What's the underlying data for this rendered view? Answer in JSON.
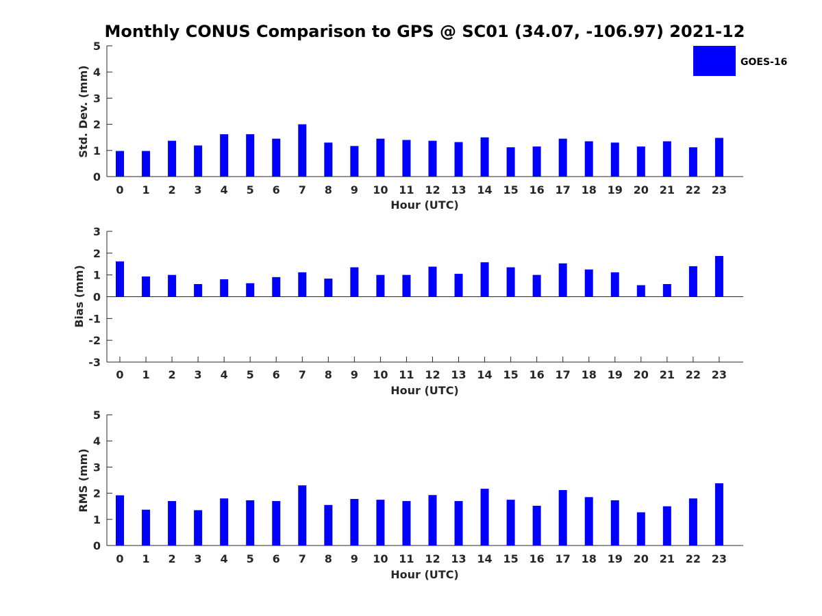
{
  "chart_data": [
    {
      "type": "bar",
      "title": "Monthly CONUS Comparison to GPS @ SC01 (34.07, -106.97) 2021-12",
      "xlabel": "Hour (UTC)",
      "ylabel": "Std. Dev. (mm)",
      "ylim": [
        0,
        5
      ],
      "yticks": [
        "0",
        "1",
        "2",
        "3",
        "4",
        "5"
      ],
      "categories": [
        "0",
        "1",
        "2",
        "3",
        "4",
        "5",
        "6",
        "7",
        "8",
        "9",
        "10",
        "11",
        "12",
        "13",
        "14",
        "15",
        "16",
        "17",
        "18",
        "19",
        "20",
        "21",
        "22",
        "23"
      ],
      "series": [
        {
          "name": "GOES-16",
          "color": "#0000ff",
          "values": [
            0.98,
            0.98,
            1.37,
            1.19,
            1.62,
            1.62,
            1.45,
            2.0,
            1.3,
            1.17,
            1.45,
            1.4,
            1.37,
            1.32,
            1.5,
            1.12,
            1.15,
            1.45,
            1.35,
            1.3,
            1.15,
            1.35,
            1.12,
            1.48
          ]
        }
      ],
      "legend": {
        "position": "top-right",
        "entries": [
          "GOES-16"
        ]
      },
      "grid": false
    },
    {
      "type": "bar",
      "xlabel": "Hour (UTC)",
      "ylabel": "Bias (mm)",
      "ylim": [
        -3,
        3
      ],
      "yticks": [
        "-3",
        "-2",
        "-1",
        "0",
        "1",
        "2",
        "3"
      ],
      "categories": [
        "0",
        "1",
        "2",
        "3",
        "4",
        "5",
        "6",
        "7",
        "8",
        "9",
        "10",
        "11",
        "12",
        "13",
        "14",
        "15",
        "16",
        "17",
        "18",
        "19",
        "20",
        "21",
        "22",
        "23"
      ],
      "zero_line": true,
      "series": [
        {
          "color": "#0000ff",
          "values": [
            1.62,
            0.93,
            1.0,
            0.58,
            0.8,
            0.62,
            0.9,
            1.12,
            0.83,
            1.35,
            1.0,
            1.0,
            1.38,
            1.05,
            1.58,
            1.35,
            1.0,
            1.53,
            1.25,
            1.12,
            0.53,
            0.58,
            1.4,
            1.87
          ]
        }
      ],
      "grid": false
    },
    {
      "type": "bar",
      "xlabel": "Hour (UTC)",
      "ylabel": "RMS (mm)",
      "ylim": [
        0,
        5
      ],
      "yticks": [
        "0",
        "1",
        "2",
        "3",
        "4",
        "5"
      ],
      "categories": [
        "0",
        "1",
        "2",
        "3",
        "4",
        "5",
        "6",
        "7",
        "8",
        "9",
        "10",
        "11",
        "12",
        "13",
        "14",
        "15",
        "16",
        "17",
        "18",
        "19",
        "20",
        "21",
        "22",
        "23"
      ],
      "series": [
        {
          "color": "#0000ff",
          "values": [
            1.92,
            1.37,
            1.7,
            1.35,
            1.8,
            1.73,
            1.7,
            2.3,
            1.55,
            1.78,
            1.75,
            1.7,
            1.93,
            1.7,
            2.17,
            1.75,
            1.52,
            2.12,
            1.85,
            1.73,
            1.27,
            1.5,
            1.8,
            2.38
          ]
        }
      ],
      "grid": false
    }
  ]
}
